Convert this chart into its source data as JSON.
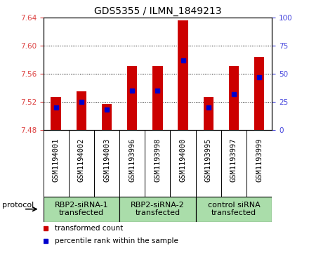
{
  "title": "GDS5355 / ILMN_1849213",
  "samples": [
    "GSM1194001",
    "GSM1194002",
    "GSM1194003",
    "GSM1193996",
    "GSM1193998",
    "GSM1194000",
    "GSM1193995",
    "GSM1193997",
    "GSM1193999"
  ],
  "bar_tops": [
    7.527,
    7.535,
    7.517,
    7.571,
    7.571,
    7.636,
    7.527,
    7.571,
    7.584
  ],
  "percentile_ranks": [
    20,
    25,
    18,
    35,
    35,
    62,
    20,
    32,
    47
  ],
  "ylim_left": [
    7.48,
    7.64
  ],
  "ylim_right": [
    0,
    100
  ],
  "yticks_left": [
    7.48,
    7.52,
    7.56,
    7.6,
    7.64
  ],
  "yticks_right": [
    0,
    25,
    50,
    75,
    100
  ],
  "bar_color": "#cc0000",
  "percentile_color": "#0000cc",
  "groups": [
    {
      "label": "RBP2-siRNA-1\ntransfected",
      "start": 0,
      "end": 3,
      "color": "#aaddaa"
    },
    {
      "label": "RBP2-siRNA-2\ntransfected",
      "start": 3,
      "end": 6,
      "color": "#aaddaa"
    },
    {
      "label": "control siRNA\ntransfected",
      "start": 6,
      "end": 9,
      "color": "#aaddaa"
    }
  ],
  "legend_items": [
    {
      "label": "transformed count",
      "color": "#cc0000"
    },
    {
      "label": "percentile rank within the sample",
      "color": "#0000cc"
    }
  ],
  "protocol_label": "protocol",
  "left_tick_color": "#dd4444",
  "right_tick_color": "#4444dd",
  "title_fontsize": 10,
  "tick_fontsize": 7.5,
  "group_fontsize": 8,
  "legend_fontsize": 7.5,
  "bar_width": 0.4,
  "sample_bg_color": "#cccccc",
  "plot_bg_color": "#ffffff"
}
